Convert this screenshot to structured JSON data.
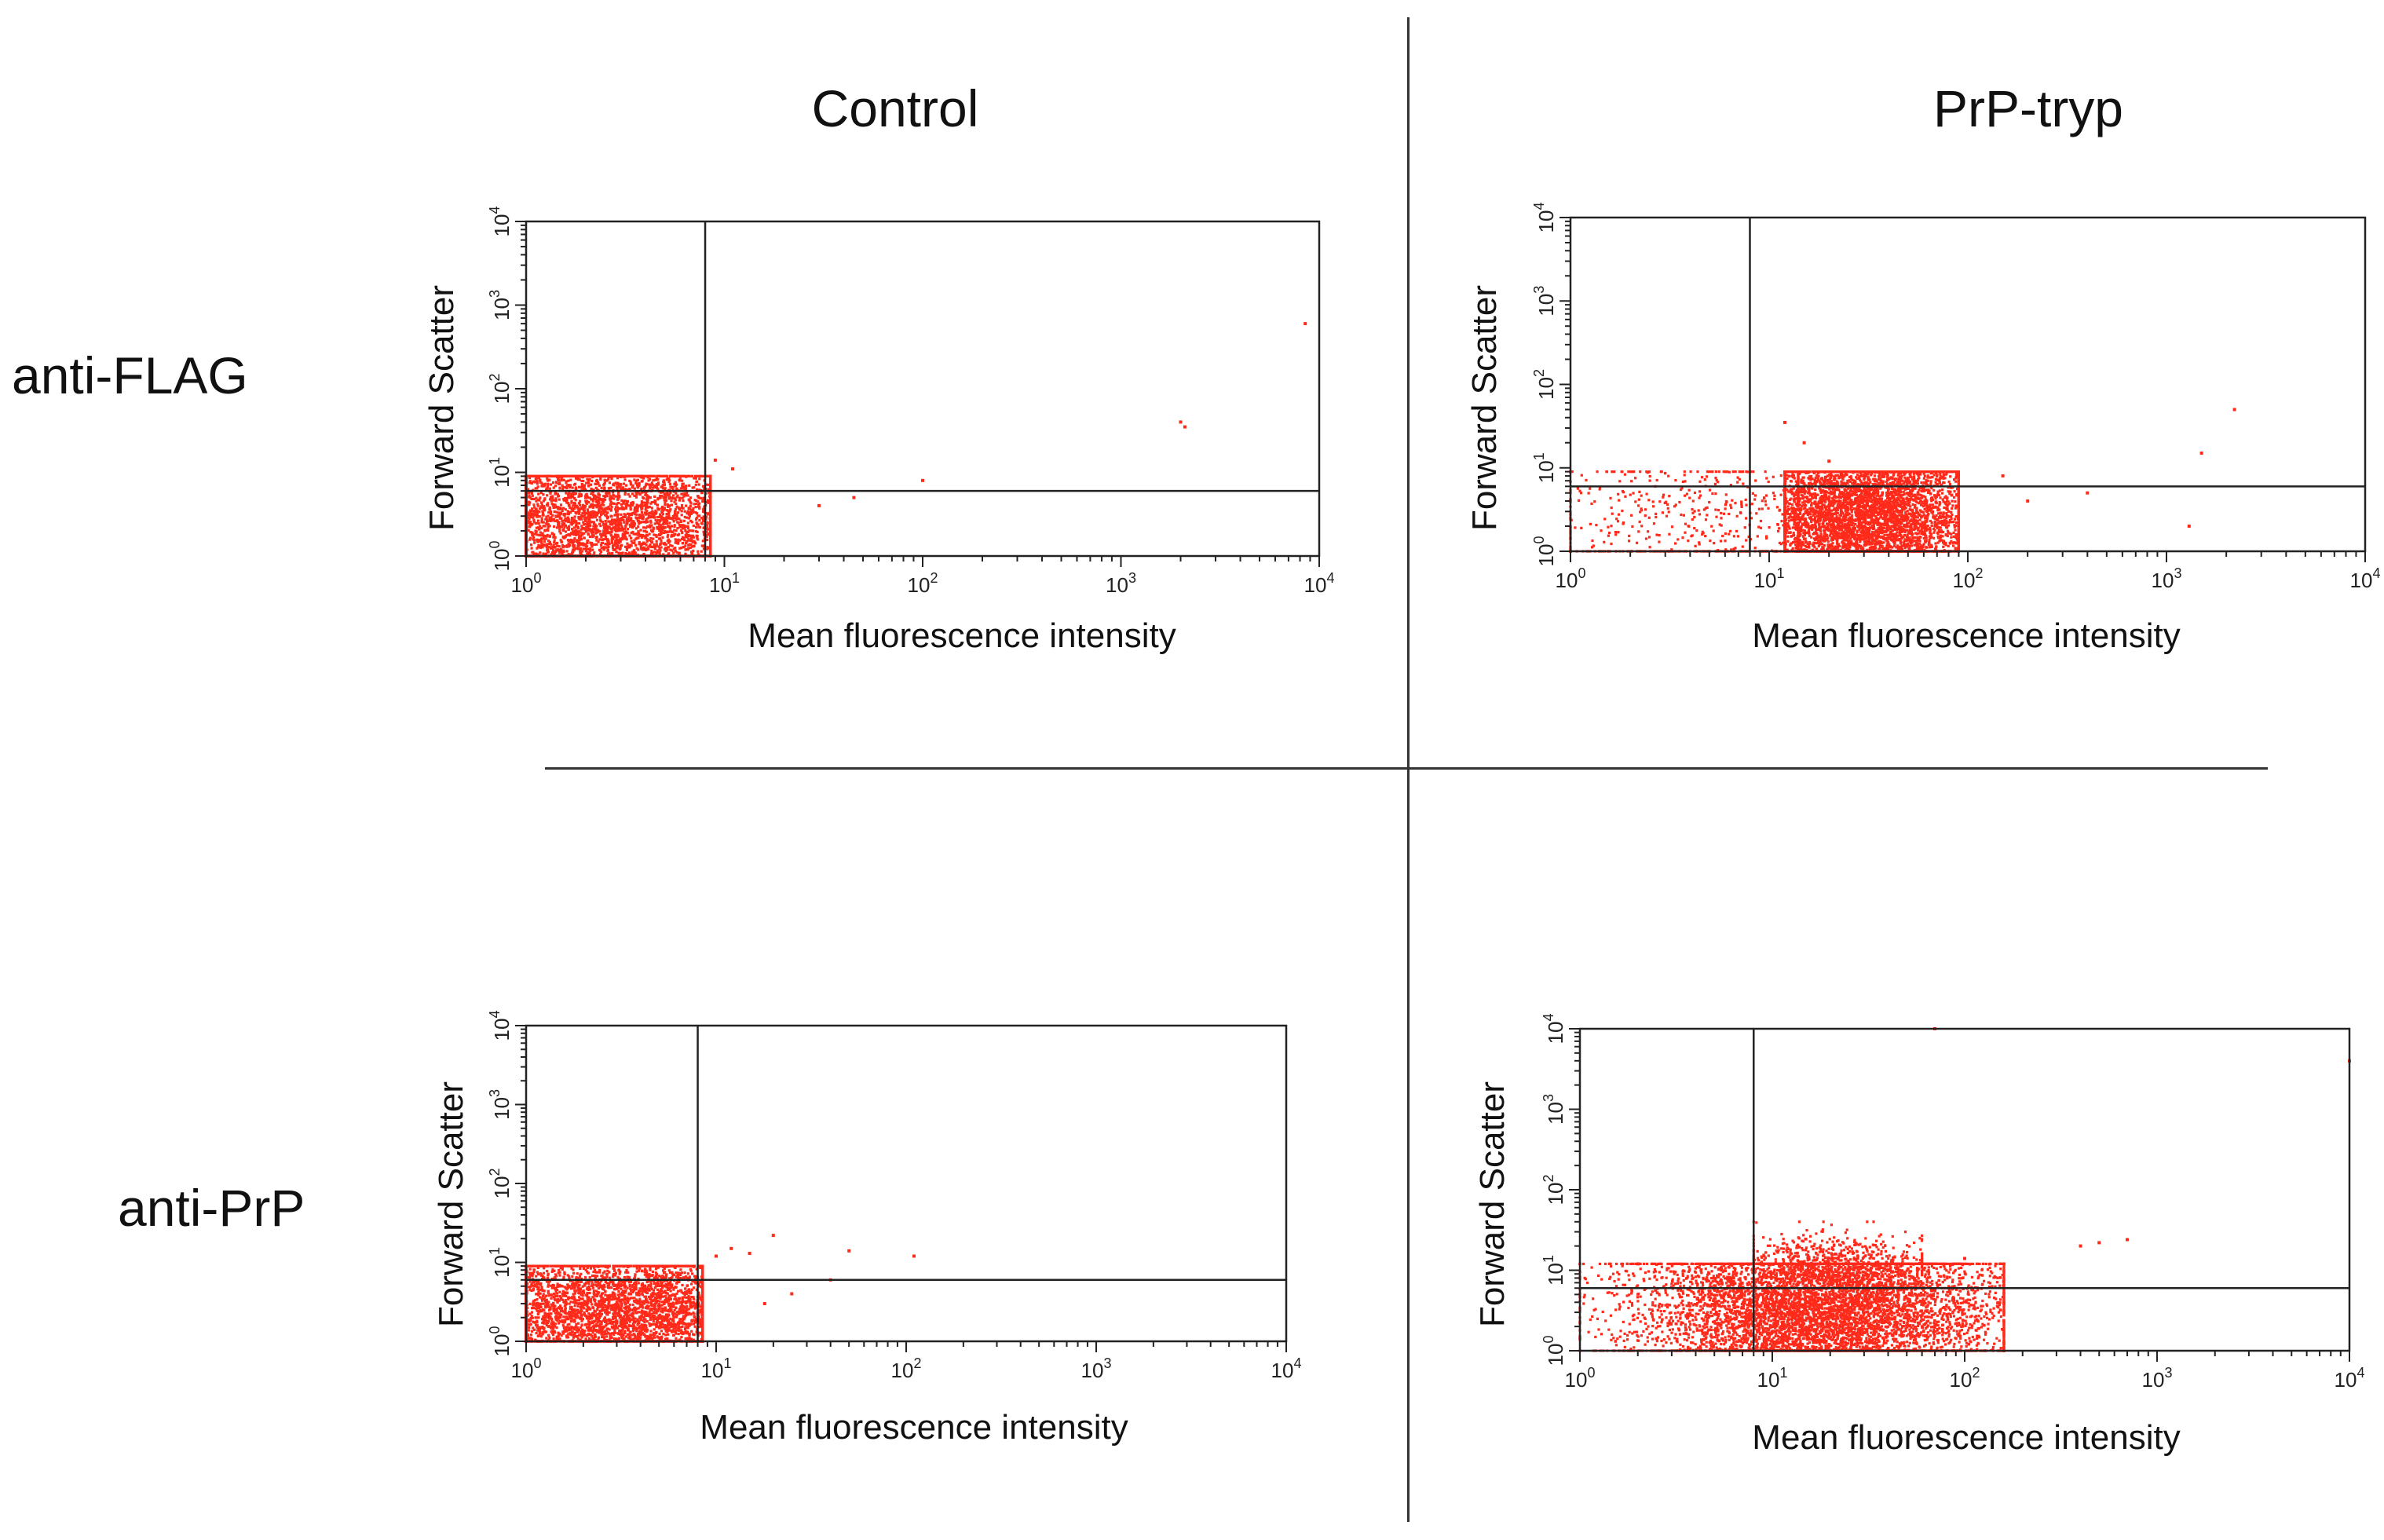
{
  "columns": [
    "Control",
    "PrP-tryp"
  ],
  "rows": [
    "anti-FLAG",
    "anti-PrP"
  ],
  "colors": {
    "points": "#ff2a1a",
    "frame": "#222222",
    "divider": "#333333"
  },
  "chart_data": [
    {
      "id": "flag-control",
      "type": "scatter",
      "row": "anti-FLAG",
      "column": "Control",
      "xlabel": "Mean fluorescence intensity",
      "ylabel": "Forward Scatter",
      "xscale": "log",
      "yscale": "log",
      "xlim": [
        1,
        10000
      ],
      "ylim": [
        1,
        10000
      ],
      "x_ticks": [
        "10^0",
        "10^1",
        "10^2",
        "10^3",
        "10^4"
      ],
      "y_ticks": [
        "10^0",
        "10^1",
        "10^2",
        "10^3",
        "10^4"
      ],
      "quadrant_gate": {
        "x": 8,
        "y": 6
      },
      "clusters": [
        {
          "x_center": 2.5,
          "x_spread": 0.5,
          "y_center": 2.5,
          "y_spread": 0.45,
          "x_min": 1,
          "x_max": 8.5,
          "y_min": 1,
          "y_max": 9,
          "count": 5200
        }
      ],
      "outliers": [
        [
          9,
          14
        ],
        [
          11,
          11
        ],
        [
          30,
          4
        ],
        [
          45,
          5
        ],
        [
          100,
          8
        ],
        [
          2000,
          40
        ],
        [
          2100,
          35
        ],
        [
          8500,
          600
        ]
      ]
    },
    {
      "id": "flag-tryp",
      "type": "scatter",
      "row": "anti-FLAG",
      "column": "PrP-tryp",
      "xlabel": "Mean fluorescence intensity",
      "ylabel": "Forward Scatter",
      "xscale": "log",
      "yscale": "log",
      "xlim": [
        1,
        10000
      ],
      "ylim": [
        1,
        10000
      ],
      "x_ticks": [
        "10^0",
        "10^1",
        "10^2",
        "10^3",
        "10^4"
      ],
      "y_ticks": [
        "10^0",
        "10^1",
        "10^2",
        "10^3",
        "10^4"
      ],
      "quadrant_gate": {
        "x": 8,
        "y": 6
      },
      "clusters": [
        {
          "x_center": 30,
          "x_spread": 0.3,
          "y_center": 2.6,
          "y_spread": 0.42,
          "x_min": 12,
          "x_max": 90,
          "y_min": 1,
          "y_max": 9,
          "count": 5400
        },
        {
          "x_center": 6,
          "x_spread": 0.55,
          "y_center": 2.2,
          "y_spread": 0.5,
          "x_min": 1,
          "x_max": 14,
          "y_min": 1,
          "y_max": 9,
          "count": 700
        }
      ],
      "outliers": [
        [
          12,
          35
        ],
        [
          15,
          20
        ],
        [
          20,
          12
        ],
        [
          150,
          8
        ],
        [
          200,
          4
        ],
        [
          400,
          5
        ],
        [
          1500,
          15
        ],
        [
          2200,
          50
        ],
        [
          1300,
          2
        ]
      ]
    },
    {
      "id": "prp-control",
      "type": "scatter",
      "row": "anti-PrP",
      "column": "Control",
      "xlabel": "Mean fluorescence intensity",
      "ylabel": "Forward Scatter",
      "xscale": "log",
      "yscale": "log",
      "xlim": [
        1,
        10000
      ],
      "ylim": [
        1,
        10000
      ],
      "x_ticks": [
        "10^0",
        "10^1",
        "10^2",
        "10^3",
        "10^4"
      ],
      "y_ticks": [
        "10^0",
        "10^1",
        "10^2",
        "10^3",
        "10^4"
      ],
      "quadrant_gate": {
        "x": 8,
        "y": 6
      },
      "clusters": [
        {
          "x_center": 3.2,
          "x_spread": 0.45,
          "y_center": 2.6,
          "y_spread": 0.4,
          "x_min": 1,
          "x_max": 8.5,
          "y_min": 1,
          "y_max": 9,
          "count": 4800
        }
      ],
      "outliers": [
        [
          10,
          12
        ],
        [
          12,
          15
        ],
        [
          15,
          13
        ],
        [
          20,
          22
        ],
        [
          25,
          4
        ],
        [
          40,
          6
        ],
        [
          50,
          14
        ],
        [
          110,
          12
        ],
        [
          18,
          3
        ]
      ]
    },
    {
      "id": "prp-tryp",
      "type": "scatter",
      "row": "anti-PrP",
      "column": "PrP-tryp",
      "xlabel": "Mean fluorescence intensity",
      "ylabel": "Forward Scatter",
      "xscale": "log",
      "yscale": "log",
      "xlim": [
        1,
        10000
      ],
      "ylim": [
        1,
        10000
      ],
      "x_ticks": [
        "10^0",
        "10^1",
        "10^2",
        "10^3",
        "10^4"
      ],
      "y_ticks": [
        "10^0",
        "10^1",
        "10^2",
        "10^3",
        "10^4"
      ],
      "quadrant_gate": {
        "x": 8,
        "y": 6
      },
      "clusters": [
        {
          "x_center": 18,
          "x_spread": 0.48,
          "y_center": 3,
          "y_spread": 0.45,
          "x_min": 1,
          "x_max": 160,
          "y_min": 1,
          "y_max": 12,
          "count": 6500
        },
        {
          "x_center": 20,
          "x_spread": 0.25,
          "y_center": 12,
          "y_spread": 0.2,
          "x_min": 8,
          "x_max": 60,
          "y_min": 6,
          "y_max": 40,
          "count": 700
        }
      ],
      "outliers": [
        [
          400,
          20
        ],
        [
          500,
          22
        ],
        [
          700,
          24
        ],
        [
          10000,
          4000
        ],
        [
          70,
          12000
        ],
        [
          2,
          12
        ],
        [
          100,
          14
        ]
      ]
    }
  ]
}
